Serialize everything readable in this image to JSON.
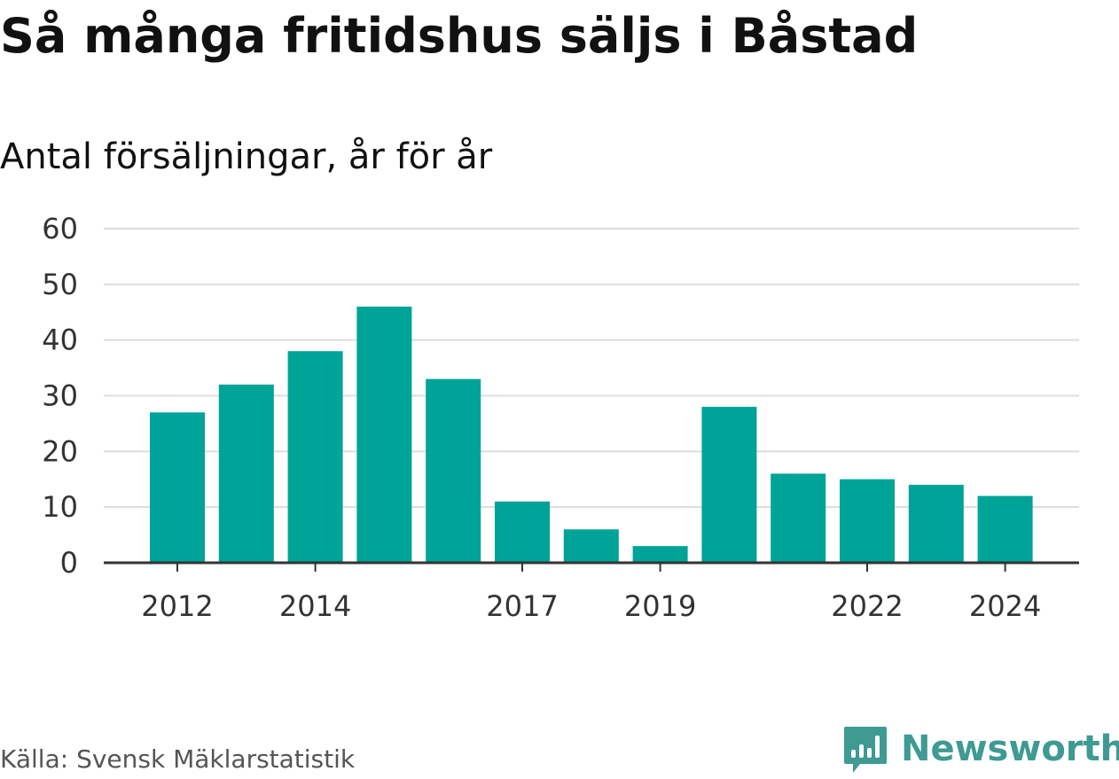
{
  "title": "Så många fritidshus säljs i Båstad",
  "subtitle": "Antal försäljningar, år för år",
  "source": "Källa: Svensk Mäklarstatistik",
  "brand": {
    "name": "Newsworthy",
    "icon": "newsworthy-logo-icon",
    "color": "#3e9a93"
  },
  "colors": {
    "bar": "#00a398",
    "grid": "#dddddd",
    "axis": "#333333"
  },
  "chart_data": {
    "type": "bar",
    "title": "Så många fritidshus säljs i Båstad",
    "subtitle": "Antal försäljningar, år för år",
    "xlabel": "",
    "ylabel": "",
    "categories": [
      "2012",
      "2013",
      "2014",
      "2015",
      "2016",
      "2017",
      "2018",
      "2019",
      "2020",
      "2021",
      "2022",
      "2023",
      "2024"
    ],
    "values": [
      27,
      32,
      38,
      46,
      33,
      11,
      6,
      3,
      28,
      16,
      15,
      14,
      12
    ],
    "x_tick_labels": [
      "2012",
      "2014",
      "2017",
      "2019",
      "2022",
      "2024"
    ],
    "y_ticks": [
      0,
      10,
      20,
      30,
      40,
      50,
      60
    ],
    "ylim": [
      0,
      60
    ],
    "grid": true,
    "legend": "none"
  }
}
